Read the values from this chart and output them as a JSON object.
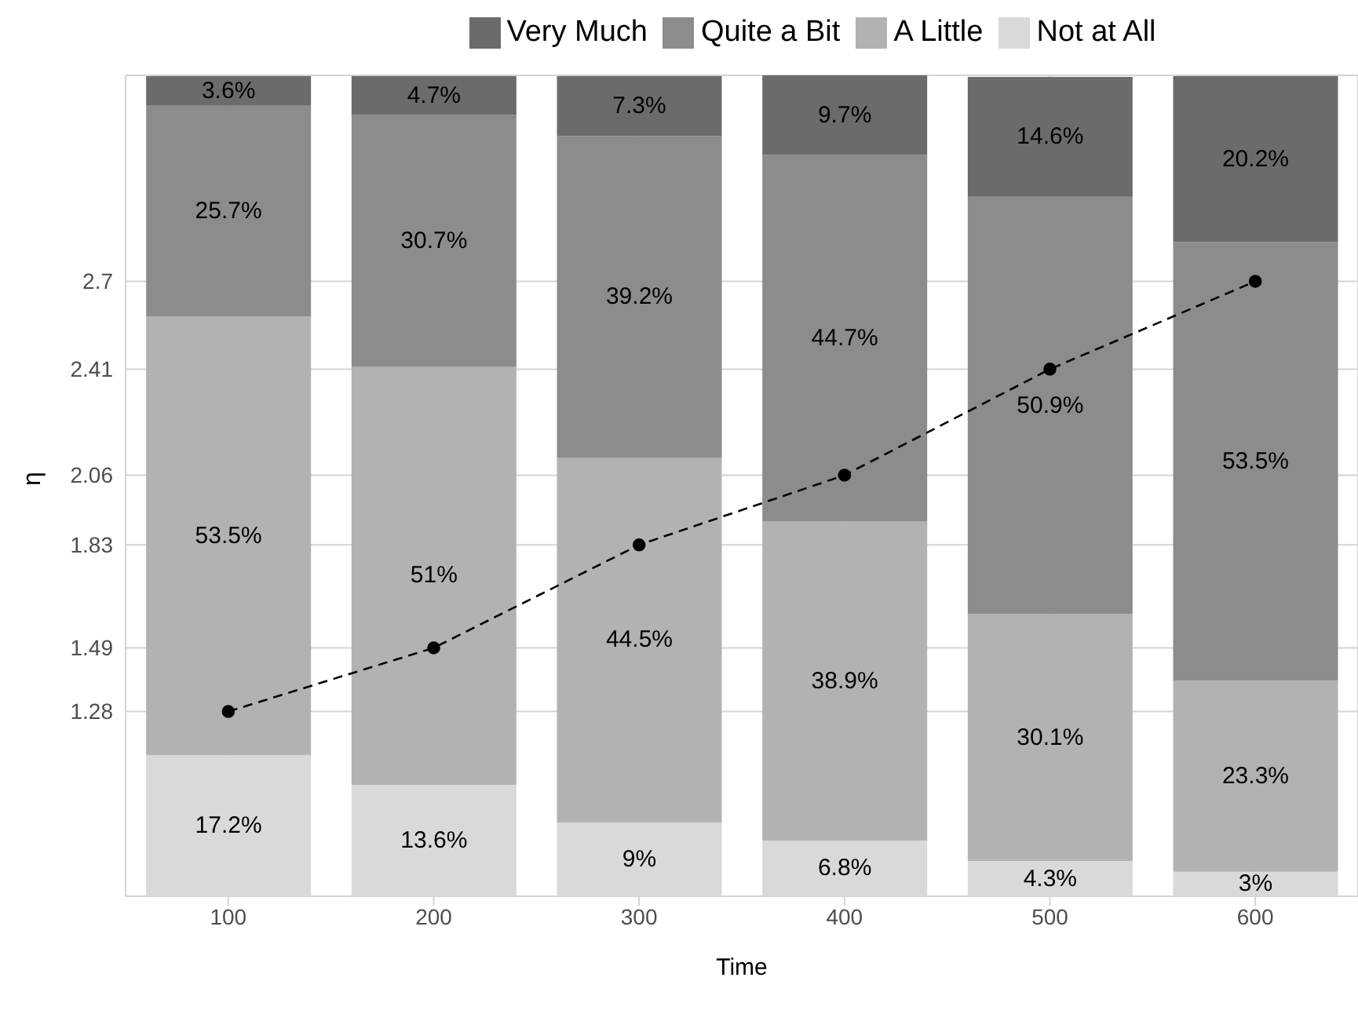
{
  "chart_data": {
    "type": "bar",
    "stacked": true,
    "xlabel": "Time",
    "ylabel": "η",
    "categories": [
      "100",
      "200",
      "300",
      "400",
      "500",
      "600"
    ],
    "ylim": [
      0.67,
      3.38
    ],
    "yticks": [
      1.28,
      1.49,
      1.83,
      2.06,
      2.41,
      2.7
    ],
    "y2lim": [
      0,
      100.1
    ],
    "grid": true,
    "legend": "top",
    "tick_labels": "xy",
    "series": [
      {
        "name": "Not at All",
        "color": "#d9d9d9",
        "axis": "y2",
        "values": [
          17.2,
          13.6,
          9,
          6.8,
          4.3,
          3
        ],
        "value_labels": [
          "17.2%",
          "13.6%",
          "9%",
          "6.8%",
          "4.3%",
          "3%"
        ]
      },
      {
        "name": "A Little",
        "color": "#b2b2b2",
        "axis": "y2",
        "values": [
          53.5,
          51,
          44.5,
          38.9,
          30.1,
          23.3
        ],
        "value_labels": [
          "53.5%",
          "51%",
          "44.5%",
          "38.9%",
          "30.1%",
          "23.3%"
        ]
      },
      {
        "name": "Quite a Bit",
        "color": "#8c8c8c",
        "axis": "y2",
        "values": [
          25.7,
          30.7,
          39.2,
          44.7,
          50.9,
          53.5
        ],
        "value_labels": [
          "25.7%",
          "30.7%",
          "39.2%",
          "44.7%",
          "50.9%",
          "53.5%"
        ]
      },
      {
        "name": "Very Much",
        "color": "#6b6b6b",
        "axis": "y2",
        "values": [
          3.6,
          4.7,
          7.3,
          9.7,
          14.6,
          20.2
        ],
        "value_labels": [
          "3.6%",
          "4.7%",
          "7.3%",
          "9.7%",
          "14.6%",
          "20.2%"
        ]
      },
      {
        "type": "line",
        "color": "#000000",
        "axis": "y",
        "marker": "circle",
        "line_style": "dashed",
        "values": [
          1.28,
          1.49,
          1.83,
          2.06,
          2.41,
          2.7
        ]
      }
    ]
  }
}
